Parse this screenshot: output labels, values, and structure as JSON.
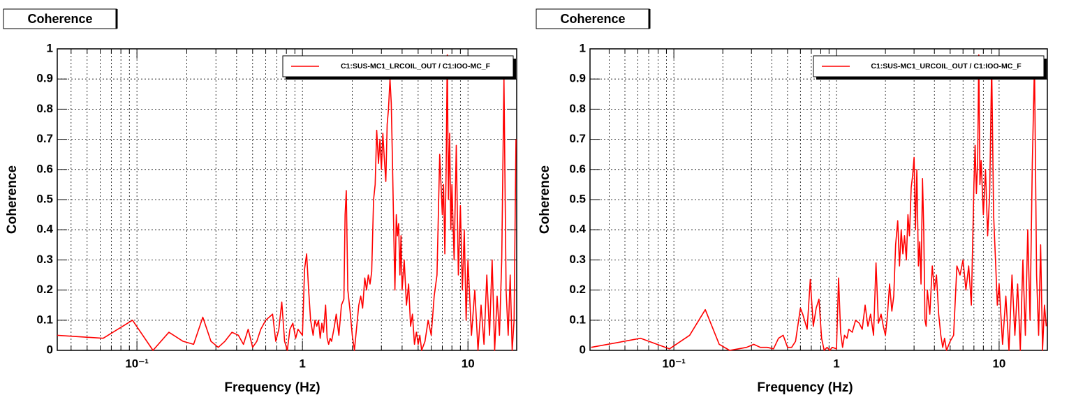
{
  "chart_data": [
    {
      "type": "line",
      "title": "Coherence",
      "xlabel": "Frequency (Hz)",
      "ylabel": "Coherence",
      "xscale": "log",
      "grid": true,
      "legend_position": "top-right",
      "xlim": [
        0.033,
        19.7
      ],
      "ylim": [
        0,
        1
      ],
      "xticks": [
        {
          "value": 0.1,
          "label": "10⁻¹"
        },
        1,
        10
      ],
      "xminorticks": [
        0.04,
        0.05,
        0.06,
        0.07,
        0.08,
        0.09,
        0.2,
        0.3,
        0.4,
        0.5,
        0.6,
        0.7,
        0.8,
        0.9,
        2,
        3,
        4,
        5,
        6,
        7,
        8,
        9
      ],
      "yticks": [
        0,
        0.1,
        0.2,
        0.3,
        0.4,
        0.5,
        0.6,
        0.7,
        0.8,
        0.9,
        1
      ],
      "x": [
        0.033,
        0.0625,
        0.094,
        0.125,
        0.156,
        0.19,
        0.22,
        0.25,
        0.28,
        0.31,
        0.34,
        0.375,
        0.41,
        0.44,
        0.47,
        0.5,
        0.53,
        0.56,
        0.6,
        0.66,
        0.69,
        0.72,
        0.75,
        0.78,
        0.81,
        0.84,
        0.875,
        0.91,
        0.94,
        1.0,
        1.03,
        1.06,
        1.09,
        1.12,
        1.16,
        1.19,
        1.22,
        1.25,
        1.28,
        1.31,
        1.34,
        1.38,
        1.41,
        1.44,
        1.47,
        1.5,
        1.56,
        1.6,
        1.66,
        1.72,
        1.78,
        1.81,
        1.84,
        1.88,
        1.94,
        2.0,
        2.06,
        2.12,
        2.19,
        2.25,
        2.31,
        2.38,
        2.44,
        2.5,
        2.56,
        2.62,
        2.69,
        2.75,
        2.81,
        2.88,
        2.94,
        3.0,
        3.06,
        3.12,
        3.19,
        3.25,
        3.31,
        3.38,
        3.44,
        3.5,
        3.56,
        3.62,
        3.69,
        3.75,
        3.81,
        3.88,
        3.94,
        4.0,
        4.12,
        4.25,
        4.38,
        4.5,
        4.62,
        4.75,
        4.88,
        5.0,
        5.12,
        5.25,
        5.5,
        5.75,
        6.0,
        6.25,
        6.5,
        6.75,
        7.0,
        7.12,
        7.25,
        7.38,
        7.5,
        7.62,
        7.75,
        7.88,
        8.0,
        8.25,
        8.5,
        8.75,
        9.0,
        9.25,
        9.5,
        9.75,
        10.0,
        10.5,
        11,
        11.5,
        12,
        12.5,
        13,
        13.5,
        14,
        14.5,
        15,
        15.5,
        16,
        16.5,
        17,
        17.5,
        18,
        18.5,
        19,
        19.5
      ],
      "series": [
        {
          "name": "C1:SUS-MC1_LRCOIL_OUT / C1:IOO-MC_F",
          "color": "#ff0000",
          "values": [
            0.05,
            0.04,
            0.1,
            0.0,
            0.06,
            0.03,
            0.02,
            0.11,
            0.03,
            0.01,
            0.03,
            0.06,
            0.05,
            0.02,
            0.07,
            0.01,
            0.03,
            0.07,
            0.1,
            0.12,
            0.03,
            0.07,
            0.16,
            0.03,
            0.0,
            0.07,
            0.09,
            0.04,
            0.07,
            0.05,
            0.27,
            0.32,
            0.2,
            0.1,
            0.05,
            0.1,
            0.08,
            0.1,
            0.04,
            0.09,
            0.06,
            0.15,
            0.04,
            0.02,
            0.04,
            0.03,
            0.08,
            0.12,
            0.05,
            0.15,
            0.17,
            0.45,
            0.53,
            0.2,
            0.13,
            0.05,
            0.0,
            0.07,
            0.15,
            0.18,
            0.14,
            0.24,
            0.2,
            0.25,
            0.22,
            0.26,
            0.5,
            0.55,
            0.73,
            0.62,
            0.7,
            0.6,
            0.72,
            0.64,
            0.56,
            0.75,
            0.8,
            0.9,
            0.82,
            0.62,
            0.4,
            0.2,
            0.45,
            0.38,
            0.42,
            0.25,
            0.38,
            0.2,
            0.3,
            0.15,
            0.22,
            0.08,
            0.12,
            0.02,
            0.06,
            0.02,
            0.05,
            0.0,
            0.03,
            0.1,
            0.05,
            0.18,
            0.25,
            0.65,
            0.45,
            0.55,
            0.32,
            0.6,
            0.98,
            0.5,
            0.72,
            0.4,
            0.55,
            0.3,
            0.68,
            0.25,
            0.48,
            0.2,
            0.4,
            0.1,
            0.3,
            0.05,
            0.2,
            0.0,
            0.15,
            0.02,
            0.25,
            0.05,
            0.3,
            0.0,
            0.18,
            0.05,
            0.3,
            0.9,
            0.2,
            0.05,
            0.25,
            0.0,
            0.1,
            0.7
          ]
        }
      ]
    },
    {
      "type": "line",
      "title": "Coherence",
      "xlabel": "Frequency (Hz)",
      "ylabel": "Coherence",
      "xscale": "log",
      "grid": true,
      "legend_position": "top-right",
      "xlim": [
        0.0305,
        19.8
      ],
      "ylim": [
        0,
        1
      ],
      "xticks": [
        {
          "value": 0.1,
          "label": "10⁻¹"
        },
        1,
        10
      ],
      "xminorticks": [
        0.04,
        0.05,
        0.06,
        0.07,
        0.08,
        0.09,
        0.2,
        0.3,
        0.4,
        0.5,
        0.6,
        0.7,
        0.8,
        0.9,
        2,
        3,
        4,
        5,
        6,
        7,
        8,
        9
      ],
      "yticks": [
        0,
        0.1,
        0.2,
        0.3,
        0.4,
        0.5,
        0.6,
        0.7,
        0.8,
        0.9,
        1
      ],
      "x": [
        0.031,
        0.0625,
        0.094,
        0.125,
        0.156,
        0.19,
        0.22,
        0.25,
        0.28,
        0.31,
        0.34,
        0.375,
        0.41,
        0.44,
        0.47,
        0.5,
        0.53,
        0.56,
        0.6,
        0.62,
        0.66,
        0.69,
        0.72,
        0.75,
        0.78,
        0.81,
        0.84,
        0.875,
        0.91,
        0.94,
        1.0,
        1.03,
        1.06,
        1.09,
        1.12,
        1.16,
        1.19,
        1.25,
        1.31,
        1.38,
        1.44,
        1.5,
        1.56,
        1.62,
        1.69,
        1.75,
        1.81,
        1.88,
        1.94,
        2.0,
        2.06,
        2.12,
        2.19,
        2.25,
        2.31,
        2.38,
        2.44,
        2.5,
        2.56,
        2.62,
        2.69,
        2.75,
        2.81,
        2.88,
        2.94,
        3.0,
        3.06,
        3.12,
        3.19,
        3.25,
        3.31,
        3.38,
        3.44,
        3.5,
        3.56,
        3.62,
        3.75,
        3.88,
        4.0,
        4.12,
        4.25,
        4.38,
        4.5,
        4.62,
        4.75,
        5.0,
        5.25,
        5.5,
        5.75,
        6.0,
        6.25,
        6.5,
        6.75,
        7.0,
        7.12,
        7.25,
        7.38,
        7.5,
        7.62,
        7.75,
        8.0,
        8.25,
        8.5,
        8.75,
        9.0,
        9.25,
        9.5,
        9.75,
        10,
        10.5,
        11,
        11.5,
        12,
        12.5,
        13,
        13.5,
        14,
        14.5,
        15,
        15.5,
        16,
        16.5,
        17,
        17.5,
        18,
        18.5,
        19,
        19.5
      ],
      "series": [
        {
          "name": "C1:SUS-MC1_URCOIL_OUT / C1:IOO-MC_F",
          "color": "#ff0000",
          "values": [
            0.01,
            0.04,
            0.005,
            0.05,
            0.135,
            0.02,
            0.0,
            0.005,
            0.01,
            0.02,
            0.01,
            0.01,
            0.005,
            0.04,
            0.05,
            0.01,
            0.01,
            0.03,
            0.14,
            0.12,
            0.07,
            0.235,
            0.08,
            0.14,
            0.17,
            0.04,
            0.0,
            0.01,
            0.0,
            0.01,
            0.005,
            0.24,
            0.06,
            0.01,
            0.05,
            0.04,
            0.07,
            0.06,
            0.1,
            0.09,
            0.07,
            0.15,
            0.08,
            0.12,
            0.05,
            0.29,
            0.09,
            0.12,
            0.08,
            0.05,
            0.12,
            0.22,
            0.13,
            0.18,
            0.35,
            0.43,
            0.28,
            0.4,
            0.32,
            0.38,
            0.3,
            0.45,
            0.38,
            0.54,
            0.58,
            0.64,
            0.4,
            0.6,
            0.28,
            0.36,
            0.22,
            0.57,
            0.4,
            0.1,
            0.08,
            0.2,
            0.12,
            0.28,
            0.2,
            0.25,
            0.12,
            0.05,
            0.01,
            0.04,
            0.0,
            0.03,
            0.05,
            0.28,
            0.25,
            0.3,
            0.2,
            0.28,
            0.15,
            0.55,
            0.68,
            0.52,
            0.63,
            0.98,
            0.55,
            0.63,
            0.45,
            0.6,
            0.38,
            0.52,
            0.95,
            0.45,
            0.3,
            0.15,
            0.22,
            0.02,
            0.18,
            0.0,
            0.25,
            0.05,
            0.22,
            0.0,
            0.3,
            0.05,
            0.4,
            0.1,
            0.62,
            0.95,
            0.25,
            0.05,
            0.35,
            0.0,
            0.15,
            0.08
          ]
        }
      ]
    }
  ]
}
